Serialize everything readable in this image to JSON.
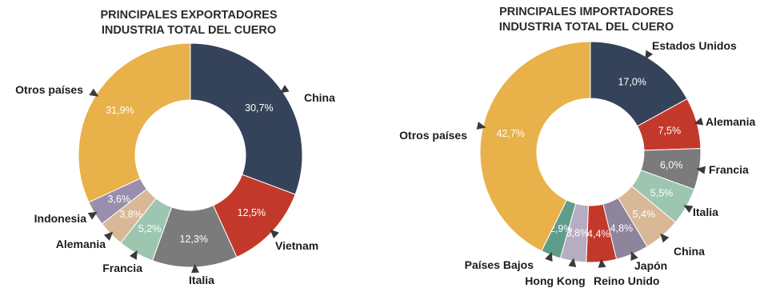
{
  "chart_data": [
    {
      "type": "pie",
      "title": "PRINCIPALES EXPORTADORES",
      "subtitle": "INDUSTRIA TOTAL DEL CUERO",
      "slices": [
        {
          "label": "China",
          "value": 30.7,
          "value_label": "30,7%",
          "color": "#35435a"
        },
        {
          "label": "Vietnam",
          "value": 12.5,
          "value_label": "12,5%",
          "color": "#c2392b"
        },
        {
          "label": "Italia",
          "value": 12.3,
          "value_label": "12,3%",
          "color": "#7b7b7b"
        },
        {
          "label": "Francia",
          "value": 5.2,
          "value_label": "5,2%",
          "color": "#9dc6b1"
        },
        {
          "label": "Alemania",
          "value": 3.8,
          "value_label": "3,8%",
          "color": "#d8b896"
        },
        {
          "label": "Indonesia",
          "value": 3.6,
          "value_label": "3,6%",
          "color": "#9a8eae"
        },
        {
          "label": "Otros países",
          "value": 31.9,
          "value_label": "31,9%",
          "color": "#e9b14a"
        }
      ]
    },
    {
      "type": "pie",
      "title": "PRINCIPALES IMPORTADORES",
      "subtitle": "INDUSTRIA TOTAL DEL CUERO",
      "slices": [
        {
          "label": "Estados Unidos",
          "value": 17.0,
          "value_label": "17,0%",
          "color": "#35435a"
        },
        {
          "label": "Alemania",
          "value": 7.5,
          "value_label": "7,5%",
          "color": "#c2392b"
        },
        {
          "label": "Francia",
          "value": 6.0,
          "value_label": "6,0%",
          "color": "#7b7b7b"
        },
        {
          "label": "Italia",
          "value": 5.5,
          "value_label": "5,5%",
          "color": "#9dc6b1"
        },
        {
          "label": "China",
          "value": 5.4,
          "value_label": "5,4%",
          "color": "#d8b896"
        },
        {
          "label": "Japón",
          "value": 4.8,
          "value_label": "4,8%",
          "color": "#8e849c"
        },
        {
          "label": "Reino Unido",
          "value": 4.4,
          "value_label": "4,4%",
          "color": "#c2392b"
        },
        {
          "label": "Hong Kong",
          "value": 3.8,
          "value_label": "3,8%",
          "color": "#b7adc2"
        },
        {
          "label": "Países Bajos",
          "value": 2.9,
          "value_label": "2,9%",
          "color": "#5f9c8a"
        },
        {
          "label": "Otros países",
          "value": 42.7,
          "value_label": "42,7%",
          "color": "#e9b14a"
        }
      ]
    }
  ]
}
